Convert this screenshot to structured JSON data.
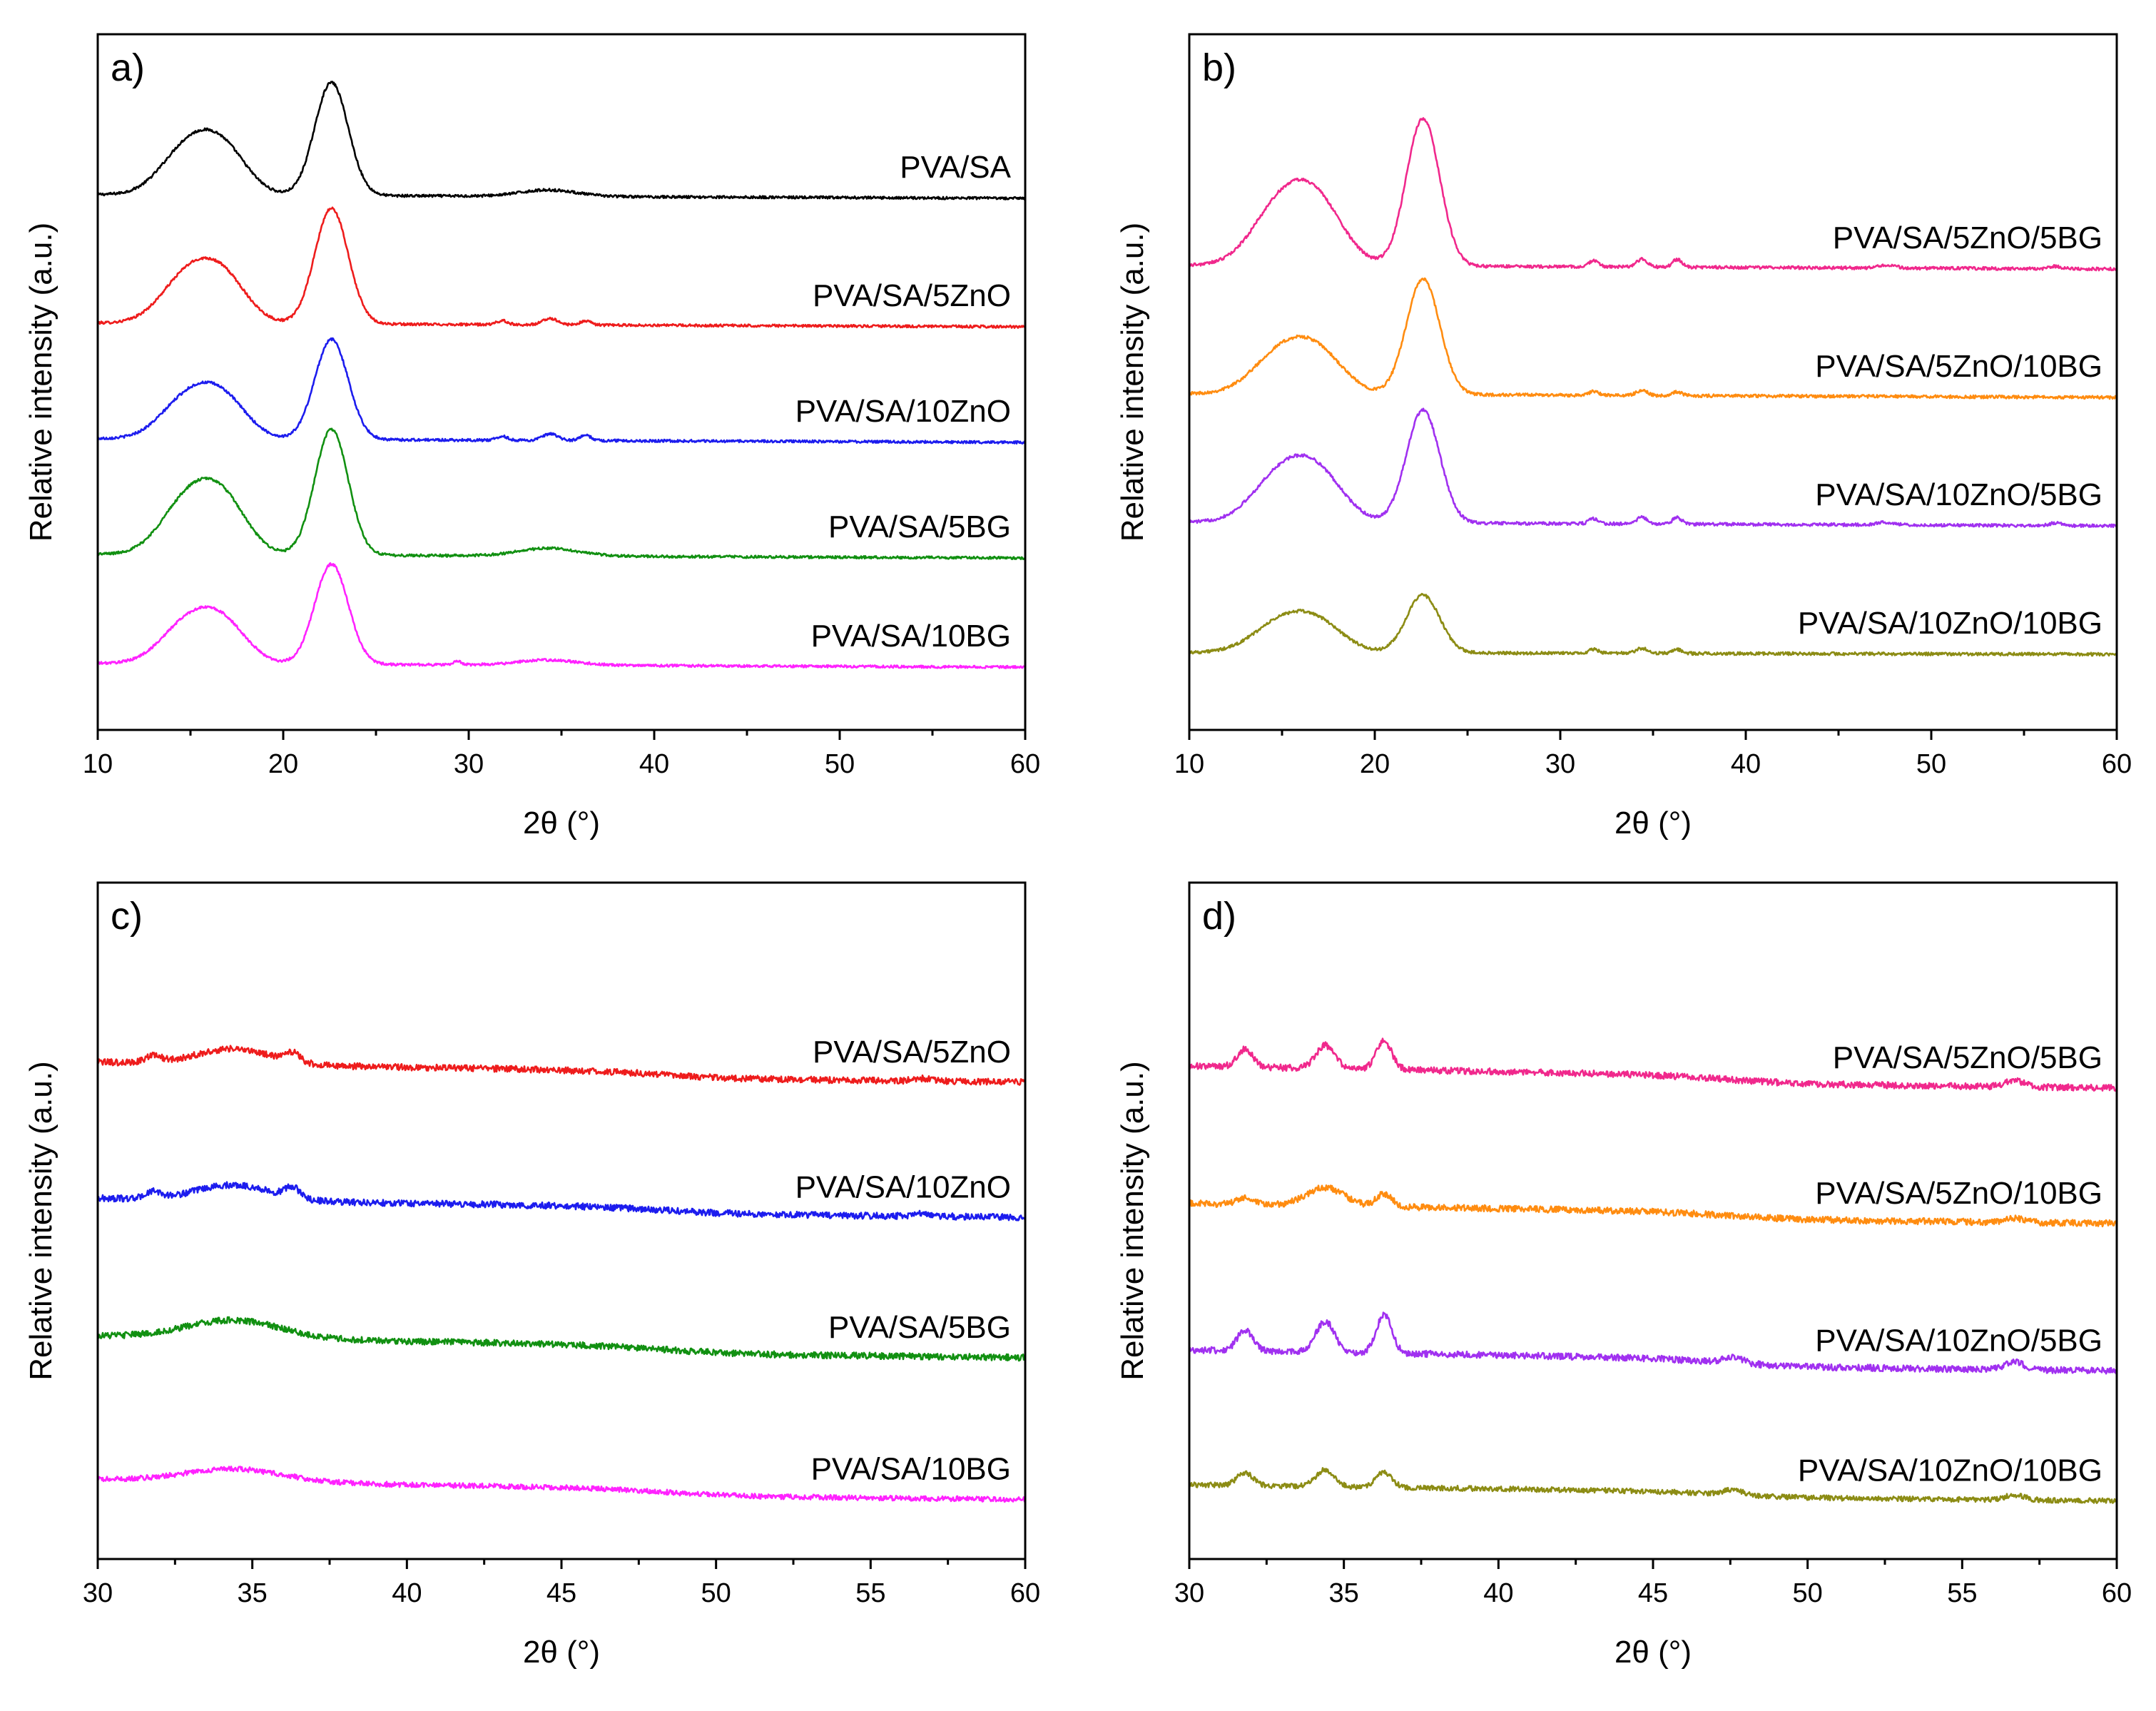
{
  "figure_type": "XRD patterns (4-panel)",
  "chart_data": [
    {
      "type": "line",
      "panel_label": "a)",
      "xlabel": "2θ (°)",
      "ylabel": "Relative intensity (a.u.)",
      "xlim": [
        10,
        60
      ],
      "xticks": [
        10,
        20,
        30,
        40,
        50,
        60
      ],
      "y_ticks_shown": false,
      "grid": false,
      "series": [
        {
          "name": "PVA/SA",
          "color": "#000000",
          "offset": 4.0,
          "end_value": 0.1,
          "peaks": [
            {
              "x": 14.8,
              "h": 0.35,
              "w": 1.4
            },
            {
              "x": 16.8,
              "h": 0.32,
              "w": 1.3
            },
            {
              "x": 22.6,
              "h": 0.88,
              "w": 0.9
            },
            {
              "x": 34.3,
              "h": 0.05,
              "w": 1.5
            }
          ],
          "noise": 0.01
        },
        {
          "name": "PVA/SA/5ZnO",
          "color": "#ee1c1c",
          "offset": 3.0,
          "end_value": 0.1,
          "peaks": [
            {
              "x": 14.8,
              "h": 0.35,
              "w": 1.4
            },
            {
              "x": 16.8,
              "h": 0.32,
              "w": 1.3
            },
            {
              "x": 22.6,
              "h": 0.9,
              "w": 0.9
            },
            {
              "x": 31.8,
              "h": 0.03,
              "w": 0.3
            },
            {
              "x": 34.4,
              "h": 0.05,
              "w": 0.4
            },
            {
              "x": 36.3,
              "h": 0.03,
              "w": 0.3
            }
          ],
          "noise": 0.01
        },
        {
          "name": "PVA/SA/10ZnO",
          "color": "#1c1cee",
          "offset": 2.1,
          "end_value": 0.1,
          "peaks": [
            {
              "x": 14.8,
              "h": 0.3,
              "w": 1.4
            },
            {
              "x": 16.8,
              "h": 0.28,
              "w": 1.3
            },
            {
              "x": 22.6,
              "h": 0.78,
              "w": 0.9
            },
            {
              "x": 31.8,
              "h": 0.03,
              "w": 0.3
            },
            {
              "x": 34.4,
              "h": 0.05,
              "w": 0.4
            },
            {
              "x": 36.3,
              "h": 0.04,
              "w": 0.3
            }
          ],
          "noise": 0.01
        },
        {
          "name": "PVA/SA/5BG",
          "color": "#119011",
          "offset": 1.2,
          "end_value": 0.1,
          "peaks": [
            {
              "x": 14.8,
              "h": 0.4,
              "w": 1.4
            },
            {
              "x": 16.8,
              "h": 0.38,
              "w": 1.3
            },
            {
              "x": 22.6,
              "h": 0.98,
              "w": 0.9
            },
            {
              "x": 34.3,
              "h": 0.06,
              "w": 1.6
            }
          ],
          "noise": 0.01
        },
        {
          "name": "PVA/SA/10BG",
          "color": "#ff22ff",
          "offset": 0.35,
          "end_value": 0.1,
          "peaks": [
            {
              "x": 14.8,
              "h": 0.3,
              "w": 1.4
            },
            {
              "x": 16.8,
              "h": 0.28,
              "w": 1.3
            },
            {
              "x": 22.6,
              "h": 0.78,
              "w": 0.9
            },
            {
              "x": 29.4,
              "h": 0.03,
              "w": 0.2
            },
            {
              "x": 34.3,
              "h": 0.04,
              "w": 1.6
            }
          ],
          "noise": 0.01
        }
      ]
    },
    {
      "type": "line",
      "panel_label": "b)",
      "xlabel": "2θ (°)",
      "ylabel": "Relative intensity (a.u.)",
      "xlim": [
        10,
        60
      ],
      "xticks": [
        10,
        20,
        30,
        40,
        50,
        60
      ],
      "y_ticks_shown": false,
      "grid": false,
      "series": [
        {
          "name": "PVA/SA/5ZnO/5BG",
          "color": "#f0288c",
          "offset": 3.45,
          "end_value": 0.1,
          "peaks": [
            {
              "x": 14.9,
              "h": 0.45,
              "w": 1.5
            },
            {
              "x": 17.0,
              "h": 0.42,
              "w": 1.4
            },
            {
              "x": 22.6,
              "h": 1.15,
              "w": 0.9
            },
            {
              "x": 31.8,
              "h": 0.05,
              "w": 0.25
            },
            {
              "x": 34.4,
              "h": 0.06,
              "w": 0.3
            },
            {
              "x": 36.3,
              "h": 0.06,
              "w": 0.25
            },
            {
              "x": 47.6,
              "h": 0.02,
              "w": 0.5
            },
            {
              "x": 56.7,
              "h": 0.02,
              "w": 0.3
            }
          ],
          "noise": 0.012
        },
        {
          "name": "PVA/SA/5ZnO/10BG",
          "color": "#ff8c10",
          "offset": 2.45,
          "end_value": 0.1,
          "peaks": [
            {
              "x": 14.9,
              "h": 0.3,
              "w": 1.5
            },
            {
              "x": 17.0,
              "h": 0.28,
              "w": 1.4
            },
            {
              "x": 22.6,
              "h": 0.9,
              "w": 0.9
            },
            {
              "x": 31.8,
              "h": 0.03,
              "w": 0.25
            },
            {
              "x": 34.4,
              "h": 0.04,
              "w": 0.3
            },
            {
              "x": 36.3,
              "h": 0.03,
              "w": 0.25
            }
          ],
          "noise": 0.012
        },
        {
          "name": "PVA/SA/10ZnO/5BG",
          "color": "#a030f0",
          "offset": 1.45,
          "end_value": 0.1,
          "peaks": [
            {
              "x": 14.9,
              "h": 0.35,
              "w": 1.5
            },
            {
              "x": 17.0,
              "h": 0.33,
              "w": 1.4
            },
            {
              "x": 22.6,
              "h": 0.88,
              "w": 0.9
            },
            {
              "x": 31.8,
              "h": 0.04,
              "w": 0.25
            },
            {
              "x": 34.4,
              "h": 0.05,
              "w": 0.3
            },
            {
              "x": 36.3,
              "h": 0.05,
              "w": 0.25
            },
            {
              "x": 47.6,
              "h": 0.02,
              "w": 0.5
            },
            {
              "x": 56.7,
              "h": 0.02,
              "w": 0.3
            }
          ],
          "noise": 0.012
        },
        {
          "name": "PVA/SA/10ZnO/10BG",
          "color": "#8c8c14",
          "offset": 0.45,
          "end_value": 0.05,
          "peaks": [
            {
              "x": 14.9,
              "h": 0.22,
              "w": 1.5
            },
            {
              "x": 17.0,
              "h": 0.2,
              "w": 1.4
            },
            {
              "x": 22.6,
              "h": 0.45,
              "w": 0.9
            },
            {
              "x": 31.8,
              "h": 0.03,
              "w": 0.25
            },
            {
              "x": 34.4,
              "h": 0.04,
              "w": 0.3
            },
            {
              "x": 36.3,
              "h": 0.03,
              "w": 0.25
            }
          ],
          "noise": 0.012
        }
      ]
    },
    {
      "type": "line",
      "panel_label": "c)",
      "xlabel": "2θ (°)",
      "ylabel": "Relative intensity (a.u.)",
      "xlim": [
        30,
        60
      ],
      "xticks": [
        30,
        35,
        40,
        45,
        50,
        55,
        60
      ],
      "y_ticks_shown": false,
      "grid": false,
      "series": [
        {
          "name": "PVA/SA/5ZnO",
          "color": "#ee1c1c",
          "offset": 3.55,
          "end_value": 0.0,
          "start_value": 0.18,
          "shoulder_x": 48.5,
          "peaks": [
            {
              "x": 31.8,
              "h": 0.05,
              "w": 0.25
            },
            {
              "x": 34.4,
              "h": 0.12,
              "w": 1.2
            },
            {
              "x": 36.3,
              "h": 0.07,
              "w": 0.25
            },
            {
              "x": 56.7,
              "h": 0.02,
              "w": 0.3
            }
          ],
          "noise": 0.025
        },
        {
          "name": "PVA/SA/10ZnO",
          "color": "#1c1cee",
          "offset": 2.5,
          "end_value": 0.0,
          "start_value": 0.17,
          "shoulder_x": 48.5,
          "peaks": [
            {
              "x": 31.8,
              "h": 0.05,
              "w": 0.25
            },
            {
              "x": 34.4,
              "h": 0.12,
              "w": 1.2
            },
            {
              "x": 36.3,
              "h": 0.08,
              "w": 0.25
            },
            {
              "x": 56.7,
              "h": 0.02,
              "w": 0.3
            }
          ],
          "noise": 0.025
        },
        {
          "name": "PVA/SA/5BG",
          "color": "#119011",
          "offset": 1.4,
          "end_value": 0.0,
          "start_value": 0.2,
          "shoulder_x": 48.5,
          "peaks": [
            {
              "x": 34.4,
              "h": 0.14,
              "w": 1.5
            }
          ],
          "noise": 0.025
        },
        {
          "name": "PVA/SA/10BG",
          "color": "#ff22ff",
          "offset": 0.3,
          "end_value": 0.0,
          "start_value": 0.18,
          "shoulder_x": 48.5,
          "peaks": [
            {
              "x": 34.4,
              "h": 0.1,
              "w": 1.6
            }
          ],
          "noise": 0.02
        }
      ]
    },
    {
      "type": "line",
      "panel_label": "d)",
      "xlabel": "2θ (°)",
      "ylabel": "Relative intensity (a.u.)",
      "xlim": [
        30,
        60
      ],
      "xticks": [
        30,
        35,
        40,
        45,
        50,
        55,
        60
      ],
      "y_ticks_shown": false,
      "grid": false,
      "series": [
        {
          "name": "PVA/SA/5ZnO/5BG",
          "color": "#f0288c",
          "offset": 3.5,
          "end_value": 0.0,
          "start_value": 0.2,
          "shoulder_x": 47.6,
          "peaks": [
            {
              "x": 31.8,
              "h": 0.14,
              "w": 0.25
            },
            {
              "x": 34.4,
              "h": 0.18,
              "w": 0.3
            },
            {
              "x": 36.3,
              "h": 0.22,
              "w": 0.25
            },
            {
              "x": 56.7,
              "h": 0.05,
              "w": 0.3
            }
          ],
          "noise": 0.025
        },
        {
          "name": "PVA/SA/5ZnO/10BG",
          "color": "#ff8c10",
          "offset": 2.45,
          "end_value": 0.0,
          "start_value": 0.18,
          "shoulder_x": 47.6,
          "peaks": [
            {
              "x": 31.8,
              "h": 0.05,
              "w": 0.25
            },
            {
              "x": 34.4,
              "h": 0.14,
              "w": 0.6
            },
            {
              "x": 36.3,
              "h": 0.1,
              "w": 0.25
            },
            {
              "x": 56.7,
              "h": 0.03,
              "w": 0.3
            }
          ],
          "noise": 0.025
        },
        {
          "name": "PVA/SA/10ZnO/5BG",
          "color": "#a030f0",
          "offset": 1.3,
          "end_value": 0.0,
          "start_value": 0.19,
          "shoulder_x": 47.6,
          "peaks": [
            {
              "x": 31.8,
              "h": 0.16,
              "w": 0.25
            },
            {
              "x": 34.4,
              "h": 0.24,
              "w": 0.3
            },
            {
              "x": 36.3,
              "h": 0.3,
              "w": 0.25
            },
            {
              "x": 47.6,
              "h": 0.05,
              "w": 0.3
            },
            {
              "x": 56.7,
              "h": 0.06,
              "w": 0.3
            }
          ],
          "noise": 0.025
        },
        {
          "name": "PVA/SA/10ZnO/10BG",
          "color": "#8c8c14",
          "offset": 0.3,
          "end_value": 0.0,
          "start_value": 0.14,
          "shoulder_x": 47.6,
          "peaks": [
            {
              "x": 31.8,
              "h": 0.1,
              "w": 0.25
            },
            {
              "x": 34.4,
              "h": 0.13,
              "w": 0.3
            },
            {
              "x": 36.3,
              "h": 0.12,
              "w": 0.25
            },
            {
              "x": 47.6,
              "h": 0.04,
              "w": 0.3
            },
            {
              "x": 56.7,
              "h": 0.04,
              "w": 0.3
            }
          ],
          "noise": 0.02
        }
      ]
    }
  ]
}
